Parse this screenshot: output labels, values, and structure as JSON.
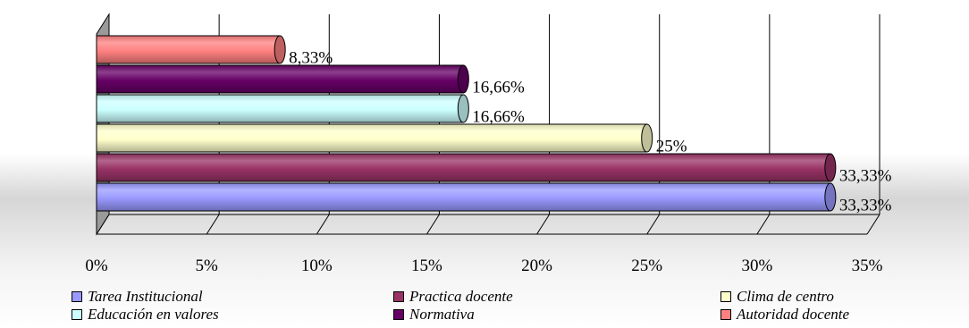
{
  "chart_data": {
    "type": "bar",
    "orientation": "horizontal",
    "title": "",
    "xlabel": "",
    "ylabel": "",
    "xlim": [
      0,
      35
    ],
    "xticks": [
      "0%",
      "5%",
      "10%",
      "15%",
      "20%",
      "25%",
      "30%",
      "35%"
    ],
    "grid": true,
    "legend_position": "bottom",
    "series": [
      {
        "name": "Tarea Institucional",
        "value": 33.33,
        "label": "33,33%",
        "color": "#9999ff"
      },
      {
        "name": "Practica docente",
        "value": 33.33,
        "label": "33,33%",
        "color": "#993366"
      },
      {
        "name": "Clima de centro",
        "value": 25,
        "label": "25%",
        "color": "#ffffcc"
      },
      {
        "name": "Educación en valores",
        "value": 16.66,
        "label": "16,66%",
        "color": "#ccffff"
      },
      {
        "name": "Normativa",
        "value": 16.66,
        "label": "16,66%",
        "color": "#660066"
      },
      {
        "name": "Autoridad docente",
        "value": 8.33,
        "label": "8,33%",
        "color": "#ff8080"
      }
    ]
  }
}
